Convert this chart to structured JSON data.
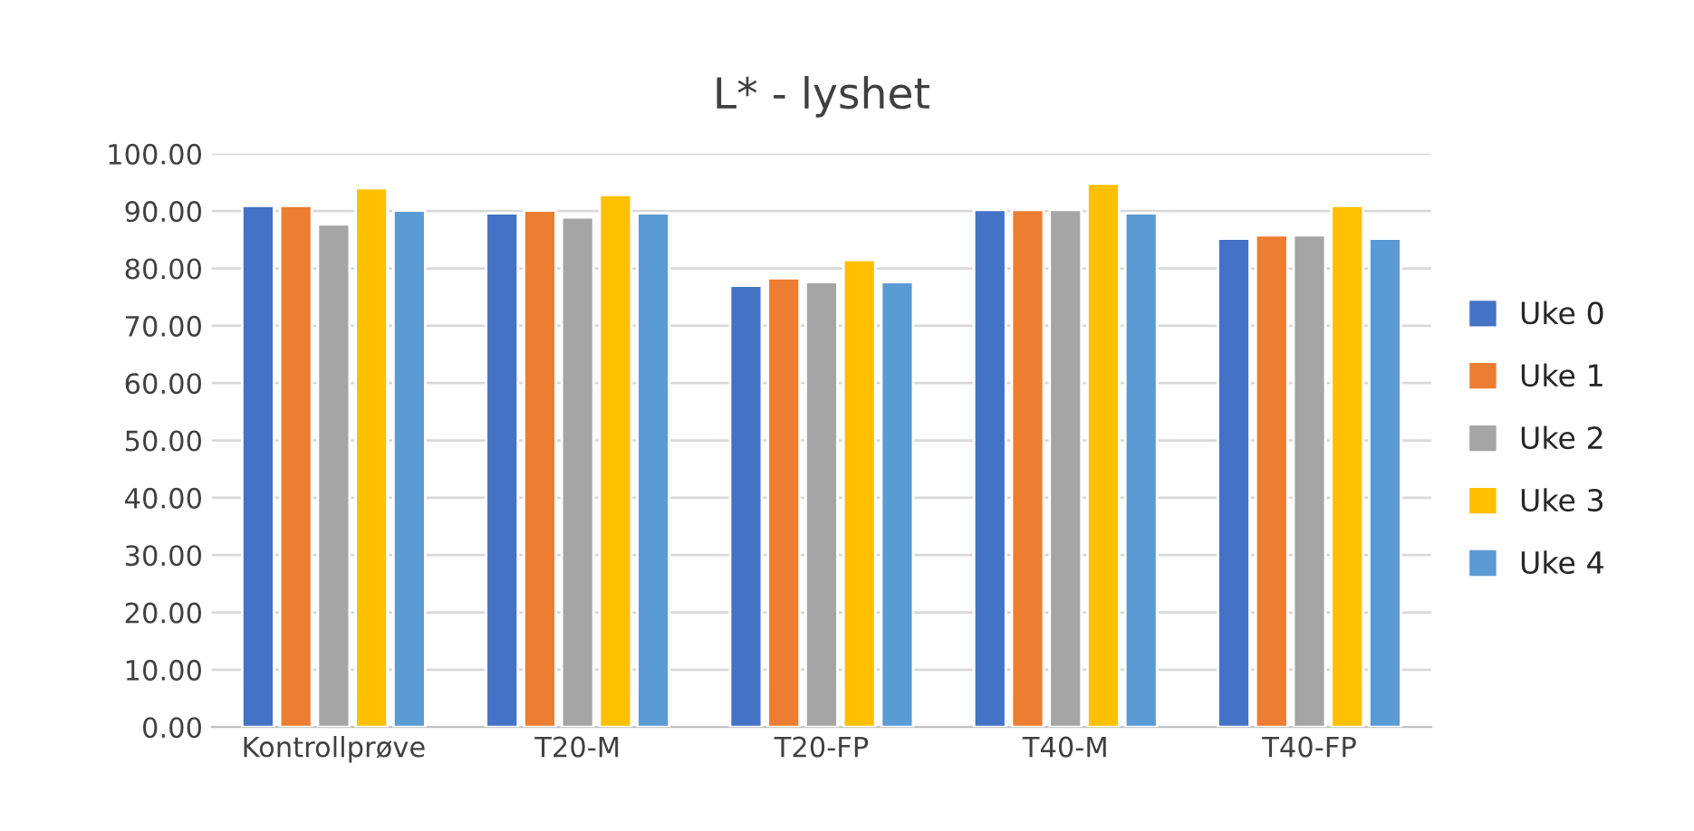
{
  "chart_data": {
    "type": "bar",
    "title": "L* - lyshet",
    "categories": [
      "Kontrollprøve",
      "T20-M",
      "T20-FP",
      "T40-M",
      "T40-FP"
    ],
    "series": [
      {
        "name": "Uke 0",
        "color": "#4472c4",
        "values": [
          90.9,
          89.6,
          77.0,
          90.2,
          85.2
        ]
      },
      {
        "name": "Uke 1",
        "color": "#ed7d31",
        "values": [
          90.9,
          90.1,
          78.3,
          90.2,
          85.8
        ]
      },
      {
        "name": "Uke 2",
        "color": "#a5a5a5",
        "values": [
          87.7,
          88.9,
          77.6,
          90.2,
          85.8
        ]
      },
      {
        "name": "Uke 3",
        "color": "#ffc000",
        "values": [
          94.0,
          92.8,
          81.5,
          94.8,
          90.9
        ]
      },
      {
        "name": "Uke 4",
        "color": "#5b9bd5",
        "values": [
          90.1,
          89.6,
          77.6,
          89.6,
          85.2
        ]
      }
    ],
    "ylim": [
      0,
      100
    ],
    "yticks": [
      {
        "value": 0,
        "label": "0.00"
      },
      {
        "value": 10,
        "label": "10.00"
      },
      {
        "value": 20,
        "label": "20.00"
      },
      {
        "value": 30,
        "label": "30.00"
      },
      {
        "value": 40,
        "label": "40.00"
      },
      {
        "value": 50,
        "label": "50.00"
      },
      {
        "value": 60,
        "label": "60.00"
      },
      {
        "value": 70,
        "label": "70.00"
      },
      {
        "value": 80,
        "label": "80.00"
      },
      {
        "value": 90,
        "label": "90.00"
      },
      {
        "value": 100,
        "label": "100.00"
      }
    ],
    "grid": "y",
    "legend": "right"
  }
}
